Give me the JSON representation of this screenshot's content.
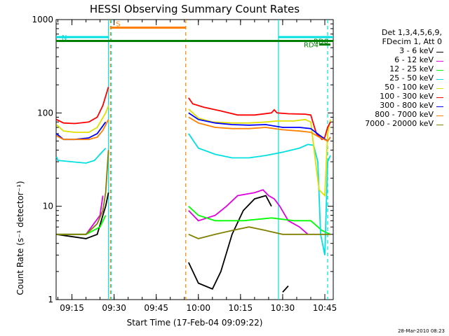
{
  "chart_data": {
    "type": "line",
    "title": "HESSI Observing Summary Count Rates",
    "xlabel": "Start Time (17-Feb-04 09:09:22)",
    "ylabel": "Count Rate (s⁻¹ detector⁻¹)",
    "yscale": "log",
    "ylim": [
      1,
      1000
    ],
    "xlim": [
      "09:09:22",
      "10:48:00"
    ],
    "x_ticks": [
      "09:15",
      "09:30",
      "09:45",
      "10:00",
      "10:15",
      "10:30",
      "10:45"
    ],
    "y_ticks": [
      "1",
      "10",
      "100",
      "1000"
    ],
    "legend_header": [
      "Det 1,3,4,5,6,9,",
      "FDecim 1, Att 0"
    ],
    "legend_position": "right",
    "series": [
      {
        "name": "3 - 6 keV",
        "color": "#000000",
        "segments": [
          [
            [
              "09:09:30",
              5
            ],
            [
              "09:20:00",
              4.5
            ],
            [
              "09:24:00",
              5
            ],
            [
              "09:26:00",
              8
            ],
            [
              "09:27:00",
              10
            ],
            [
              "09:28:00",
              14
            ]
          ],
          [
            [
              "09:56:30",
              2.5
            ],
            [
              "10:00:00",
              1.5
            ],
            [
              "10:05:00",
              1.3
            ],
            [
              "10:08:00",
              2
            ],
            [
              "10:12:00",
              5
            ],
            [
              "10:16:00",
              9
            ],
            [
              "10:20:00",
              12
            ],
            [
              "10:24:00",
              13
            ],
            [
              "10:26:00",
              10
            ]
          ],
          [
            [
              "10:30:00",
              1.2
            ],
            [
              "10:32:00",
              1.4
            ]
          ]
        ]
      },
      {
        "name": "6 - 12 keV",
        "color": "#e000e0",
        "segments": [
          [
            [
              "09:09:30",
              5
            ],
            [
              "09:20:00",
              5
            ],
            [
              "09:25:00",
              8
            ],
            [
              "09:26:00",
              13
            ]
          ],
          [
            [
              "09:56:30",
              9
            ],
            [
              "10:00:00",
              7
            ],
            [
              "10:06:00",
              8
            ],
            [
              "10:10:00",
              10
            ],
            [
              "10:14:00",
              13
            ],
            [
              "10:20:00",
              14
            ],
            [
              "10:23:00",
              15
            ],
            [
              "10:25:00",
              13
            ],
            [
              "10:27:00",
              12
            ],
            [
              "10:29:00",
              10
            ],
            [
              "10:32:00",
              7
            ],
            [
              "10:36:00",
              6
            ],
            [
              "10:39:00",
              5
            ]
          ]
        ]
      },
      {
        "name": "12 - 25 keV",
        "color": "#00ff00",
        "segments": [
          [
            [
              "09:09:30",
              5
            ],
            [
              "09:20:00",
              5
            ],
            [
              "09:25:00",
              6
            ],
            [
              "09:27:00",
              8
            ]
          ],
          [
            [
              "09:56:30",
              10
            ],
            [
              "10:00:00",
              8
            ],
            [
              "10:06:00",
              7
            ],
            [
              "10:16:00",
              7
            ],
            [
              "10:26:00",
              7.5
            ],
            [
              "10:34:00",
              7
            ],
            [
              "10:40:00",
              7
            ],
            [
              "10:44:00",
              5.5
            ],
            [
              "10:47:00",
              5
            ]
          ]
        ]
      },
      {
        "name": "25 - 50 keV",
        "color": "#00e0e0",
        "segments": [
          [
            [
              "09:09:30",
              34
            ],
            [
              "09:10:00",
              31
            ],
            [
              "09:15:00",
              30
            ],
            [
              "09:20:00",
              29
            ],
            [
              "09:23:00",
              31
            ],
            [
              "09:27:00",
              42
            ]
          ],
          [
            [
              "09:56:30",
              60
            ],
            [
              "10:00:00",
              42
            ],
            [
              "10:06:00",
              36
            ],
            [
              "10:12:00",
              33
            ],
            [
              "10:18:00",
              33
            ],
            [
              "10:24:00",
              35
            ],
            [
              "10:30:00",
              38
            ],
            [
              "10:36:00",
              42
            ],
            [
              "10:39:00",
              46
            ],
            [
              "10:41:00",
              45
            ],
            [
              "10:42:30",
              30
            ],
            [
              "10:43:30",
              5
            ],
            [
              "10:45:00",
              3
            ],
            [
              "10:46:00",
              30
            ],
            [
              "10:47:00",
              35
            ]
          ]
        ]
      },
      {
        "name": "50 - 100 keV",
        "color": "#e0e000",
        "segments": [
          [
            [
              "09:09:30",
              75
            ],
            [
              "09:12:00",
              64
            ],
            [
              "09:16:00",
              62
            ],
            [
              "09:21:00",
              62
            ],
            [
              "09:24:00",
              70
            ],
            [
              "09:27:00",
              100
            ],
            [
              "09:28:00",
              120
            ]
          ],
          [
            [
              "09:56:30",
              110
            ],
            [
              "10:00:00",
              88
            ],
            [
              "10:05:00",
              80
            ],
            [
              "10:12:00",
              78
            ],
            [
              "10:18:00",
              78
            ],
            [
              "10:24:00",
              80
            ],
            [
              "10:28:00",
              82
            ],
            [
              "10:34:00",
              82
            ],
            [
              "10:38:00",
              85
            ],
            [
              "10:40:00",
              80
            ],
            [
              "10:42:00",
              25
            ],
            [
              "10:43:00",
              15
            ],
            [
              "10:45:00",
              13
            ],
            [
              "10:46:00",
              60
            ],
            [
              "10:47:00",
              85
            ]
          ]
        ]
      },
      {
        "name": "100 - 300 keV",
        "color": "#ff0000",
        "segments": [
          [
            [
              "09:09:30",
              85
            ],
            [
              "09:12:00",
              78
            ],
            [
              "09:16:00",
              77
            ],
            [
              "09:21:00",
              80
            ],
            [
              "09:24:00",
              90
            ],
            [
              "09:26:00",
              120
            ],
            [
              "09:28:00",
              190
            ]
          ],
          [
            [
              "09:56:30",
              145
            ],
            [
              "09:58:00",
              125
            ],
            [
              "10:02:00",
              115
            ],
            [
              "10:08:00",
              105
            ],
            [
              "10:14:00",
              95
            ],
            [
              "10:20:00",
              95
            ],
            [
              "10:26:00",
              100
            ],
            [
              "10:27:00",
              108
            ],
            [
              "10:28:00",
              100
            ],
            [
              "10:32:00",
              98
            ],
            [
              "10:38:00",
              97
            ],
            [
              "10:40:00",
              95
            ],
            [
              "10:42:00",
              60
            ],
            [
              "10:44:00",
              52
            ],
            [
              "10:45:00",
              55
            ],
            [
              "10:46:00",
              70
            ],
            [
              "10:47:00",
              80
            ]
          ]
        ]
      },
      {
        "name": "300 - 800 keV",
        "color": "#0000ff",
        "segments": [
          [
            [
              "09:09:30",
              60
            ],
            [
              "09:12:00",
              52
            ],
            [
              "09:16:00",
              52
            ],
            [
              "09:21:00",
              54
            ],
            [
              "09:24:00",
              60
            ],
            [
              "09:27:00",
              80
            ]
          ],
          [
            [
              "09:56:30",
              100
            ],
            [
              "10:00:00",
              85
            ],
            [
              "10:06:00",
              78
            ],
            [
              "10:12:00",
              75
            ],
            [
              "10:18:00",
              74
            ],
            [
              "10:24:00",
              75
            ],
            [
              "10:30:00",
              70
            ],
            [
              "10:36:00",
              70
            ],
            [
              "10:40:00",
              68
            ],
            [
              "10:43:00",
              58
            ],
            [
              "10:46:00",
              50
            ],
            [
              "10:47:00",
              55
            ]
          ]
        ]
      },
      {
        "name": "800 - 7000 keV",
        "color": "#ff8000",
        "segments": [
          [
            [
              "09:09:30",
              57
            ],
            [
              "09:12:00",
              52
            ],
            [
              "09:16:00",
              52
            ],
            [
              "09:21:00",
              52
            ],
            [
              "09:24:00",
              55
            ],
            [
              "09:26:00",
              65
            ],
            [
              "09:28:00",
              85
            ]
          ],
          [
            [
              "09:56:30",
              90
            ],
            [
              "10:00:00",
              78
            ],
            [
              "10:06:00",
              70
            ],
            [
              "10:12:00",
              68
            ],
            [
              "10:18:00",
              68
            ],
            [
              "10:24:00",
              70
            ],
            [
              "10:30:00",
              66
            ],
            [
              "10:36:00",
              64
            ],
            [
              "10:40:00",
              62
            ],
            [
              "10:43:00",
              55
            ],
            [
              "10:46:00",
              50
            ],
            [
              "10:47:00",
              55
            ]
          ]
        ]
      },
      {
        "name": "7000 - 20000 keV",
        "color": "#808000",
        "segments": [
          [
            [
              "09:09:30",
              5
            ],
            [
              "09:14:00",
              5
            ],
            [
              "09:20:00",
              5
            ],
            [
              "09:24:00",
              6.5
            ],
            [
              "09:26:00",
              9
            ],
            [
              "09:27:00",
              14
            ],
            [
              "09:28:00",
              40
            ]
          ],
          [
            [
              "09:56:30",
              5
            ],
            [
              "10:00:00",
              4.5
            ],
            [
              "10:06:00",
              5
            ],
            [
              "10:12:00",
              5.5
            ],
            [
              "10:18:00",
              6
            ],
            [
              "10:24:00",
              5.5
            ],
            [
              "10:30:00",
              5
            ],
            [
              "10:36:00",
              5
            ],
            [
              "10:42:00",
              5
            ],
            [
              "10:47:00",
              5
            ]
          ]
        ]
      }
    ],
    "vertical_lines": [
      {
        "time": "09:28:00",
        "color": "#00e0e0",
        "style": "solid"
      },
      {
        "time": "09:29:00",
        "color": "#00e0e0",
        "style": "dashed"
      },
      {
        "time": "09:28:40",
        "color": "#ff8000",
        "style": "dashed"
      },
      {
        "time": "09:55:30",
        "color": "#ff8000",
        "style": "dashed"
      },
      {
        "time": "10:28:30",
        "color": "#00e0e0",
        "style": "solid"
      },
      {
        "time": "10:46:00",
        "color": "#00e0e0",
        "style": "dashed"
      }
    ],
    "annotation_bars": [
      {
        "label": "N",
        "color": "#00e0e0",
        "y": 650,
        "start": "09:09:22",
        "end": "09:28:00"
      },
      {
        "label": "S",
        "color": "#ff8000",
        "y": 820,
        "start": "09:28:40",
        "end": "09:55:30"
      },
      {
        "label": "",
        "color": "#00e0e0",
        "y": 650,
        "start": "10:28:30",
        "end": "10:48:00"
      },
      {
        "label": "",
        "color": "#008000",
        "y": 590,
        "start": "09:09:22",
        "end": "10:48:00"
      },
      {
        "label": "RD4",
        "color": "#008000",
        "y": 540,
        "start": "10:43:00",
        "end": "10:47:00"
      },
      {
        "label": "RD0",
        "color": "#008000",
        "y": 590,
        "start": "10:46:30",
        "end": "10:48:00"
      }
    ],
    "stamp": "28-Mar-2010 08:23"
  }
}
